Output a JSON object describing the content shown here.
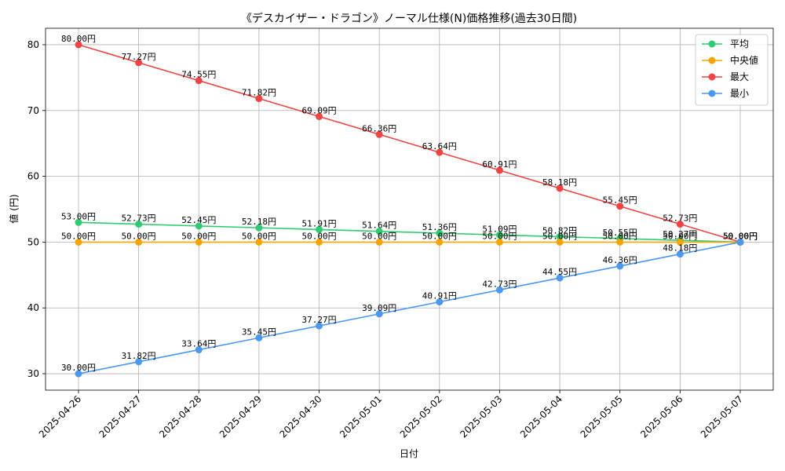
{
  "chart_data": {
    "type": "line",
    "title": "《デスカイザー・ドラゴン》ノーマル仕様(N)価格推移(過去30日間)",
    "xlabel": "日付",
    "ylabel": "値 (円)",
    "ylim": [
      27.5,
      82.5
    ],
    "yticks": [
      30,
      40,
      50,
      60,
      70,
      80
    ],
    "grid": true,
    "legend_position": "top-right",
    "value_suffix": "円",
    "categories": [
      "2025-04-26",
      "2025-04-27",
      "2025-04-28",
      "2025-04-29",
      "2025-04-30",
      "2025-05-01",
      "2025-05-02",
      "2025-05-03",
      "2025-05-04",
      "2025-05-05",
      "2025-05-06",
      "2025-05-07"
    ],
    "series": [
      {
        "name": "平均",
        "color": "#2ecc71",
        "values": [
          53.0,
          52.73,
          52.45,
          52.18,
          51.91,
          51.64,
          51.36,
          51.09,
          50.82,
          50.55,
          50.27,
          50.0
        ]
      },
      {
        "name": "中央値",
        "color": "#f5a500",
        "values": [
          50.0,
          50.0,
          50.0,
          50.0,
          50.0,
          50.0,
          50.0,
          50.0,
          50.0,
          50.0,
          50.0,
          50.0
        ]
      },
      {
        "name": "最大",
        "color": "#f04444",
        "values": [
          80.0,
          77.27,
          74.55,
          71.82,
          69.09,
          66.36,
          63.64,
          60.91,
          58.18,
          55.45,
          52.73,
          50.0
        ]
      },
      {
        "name": "最小",
        "color": "#4a98f0",
        "values": [
          30.0,
          31.82,
          33.64,
          35.45,
          37.27,
          39.09,
          40.91,
          42.73,
          44.55,
          46.36,
          48.18,
          50.0
        ]
      }
    ]
  }
}
